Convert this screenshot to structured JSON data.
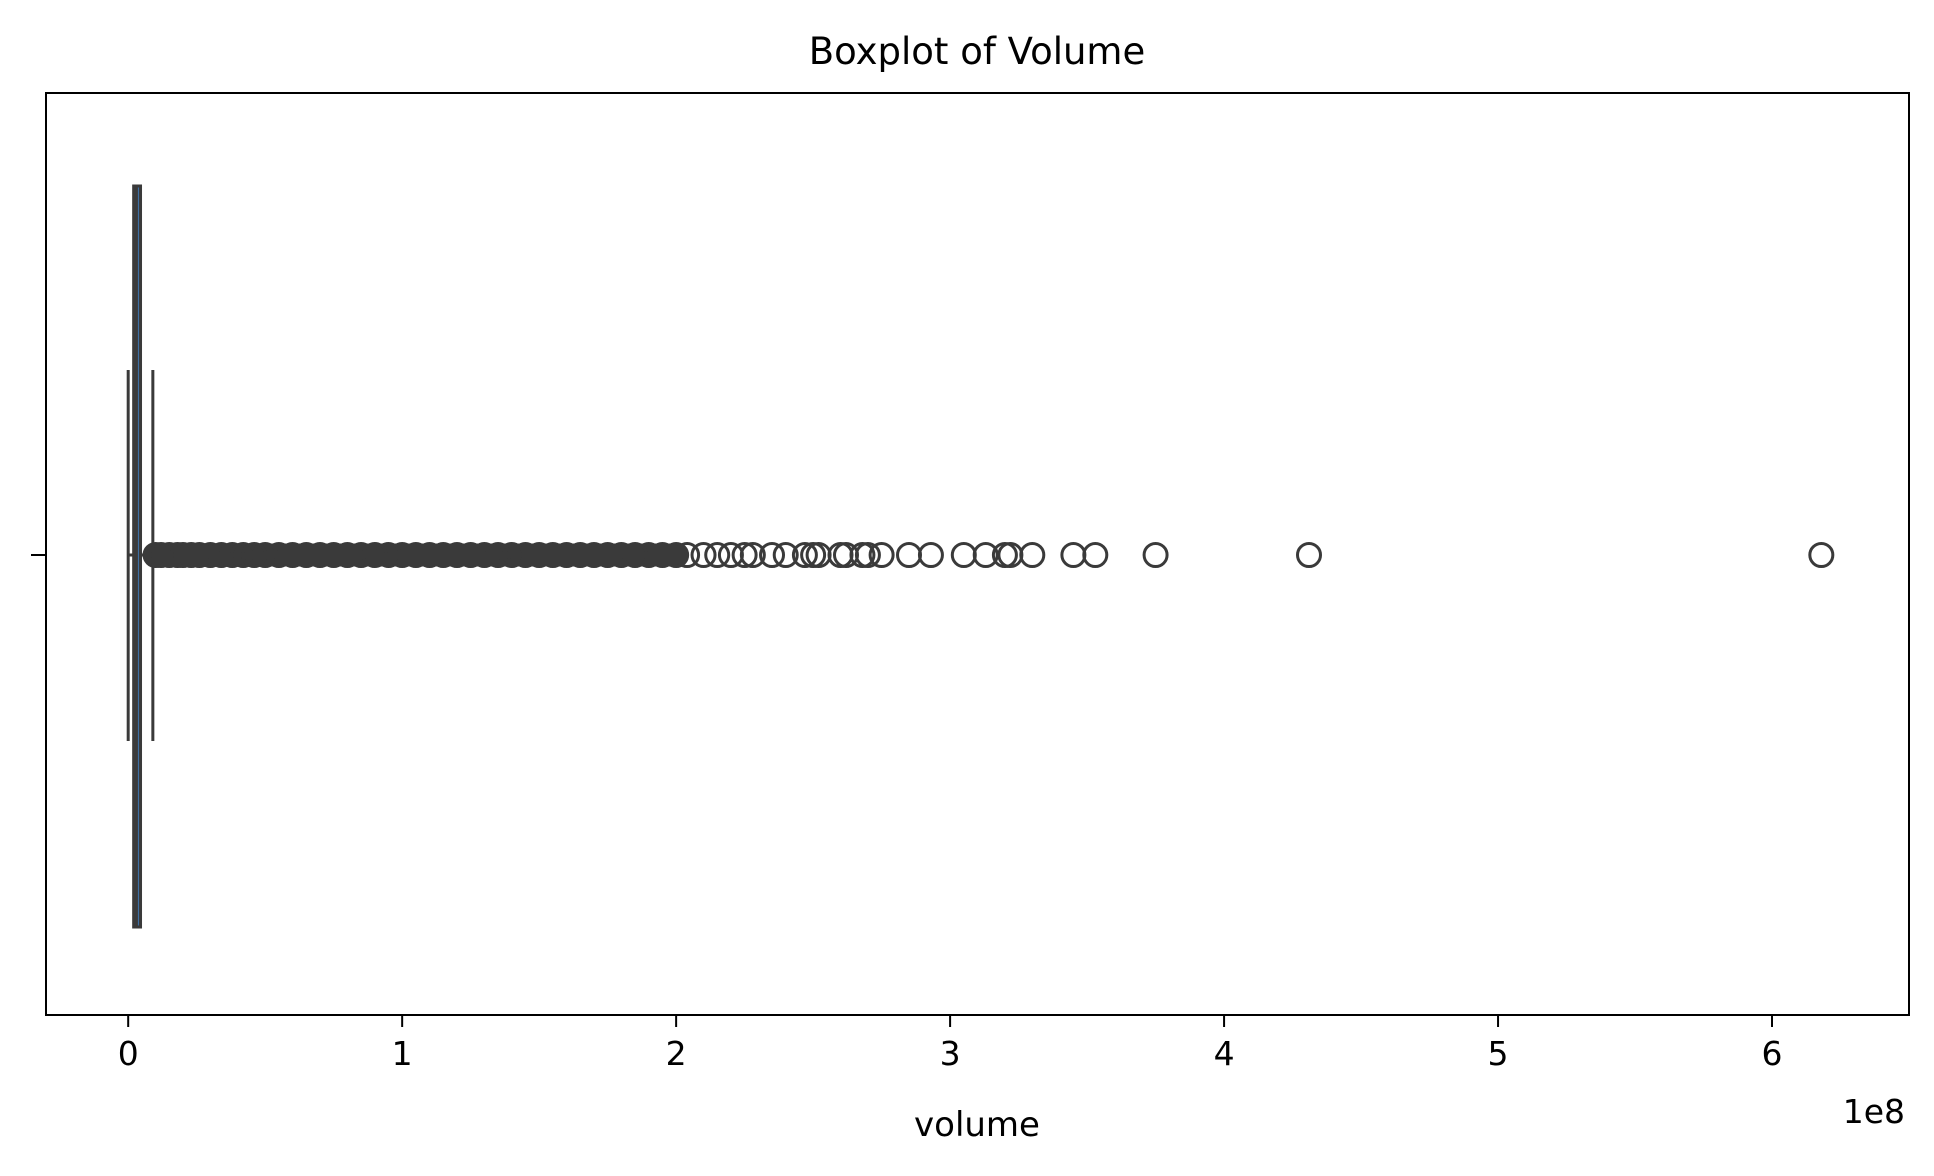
{
  "chart_data": {
    "type": "boxplot",
    "title": "Boxplot of Volume",
    "xlabel": "volume",
    "ylabel": "",
    "x_offset_label": "1e8",
    "x_scale_multiplier": 100000000,
    "xlim": [
      -0.3,
      6.5
    ],
    "xticks": [
      0,
      1,
      2,
      3,
      4,
      5,
      6
    ],
    "xtick_labels": [
      "0",
      "1",
      "2",
      "3",
      "4",
      "5",
      "6"
    ],
    "grid": false,
    "legend": false,
    "colors": {
      "box_fill": "#3d6fa3",
      "box_edge": "#3a3a3a",
      "outlier_edge": "#3a3a3a",
      "axes_edge": "#000000"
    },
    "box": {
      "min": 0.0,
      "q1": 0.02,
      "median": 0.03,
      "q3": 0.045,
      "whisker_low": 0.0,
      "whisker_high": 0.09
    },
    "outliers_dense_range": [
      0.095,
      2.0
    ],
    "outliers": [
      0.1,
      0.12,
      0.15,
      0.18,
      0.2,
      0.23,
      0.26,
      0.3,
      0.34,
      0.38,
      0.42,
      0.46,
      0.5,
      0.55,
      0.6,
      0.65,
      0.7,
      0.75,
      0.8,
      0.85,
      0.9,
      0.95,
      1.0,
      1.05,
      1.1,
      1.15,
      1.2,
      1.25,
      1.3,
      1.35,
      1.4,
      1.45,
      1.5,
      1.55,
      1.6,
      1.65,
      1.7,
      1.75,
      1.8,
      1.85,
      1.9,
      1.95,
      2.0,
      2.04,
      2.1,
      2.15,
      2.2,
      2.25,
      2.28,
      2.35,
      2.4,
      2.47,
      2.5,
      2.52,
      2.6,
      2.62,
      2.68,
      2.7,
      2.75,
      2.85,
      2.93,
      3.05,
      3.13,
      3.2,
      3.22,
      3.3,
      3.45,
      3.53,
      3.75,
      4.31,
      6.18
    ]
  }
}
